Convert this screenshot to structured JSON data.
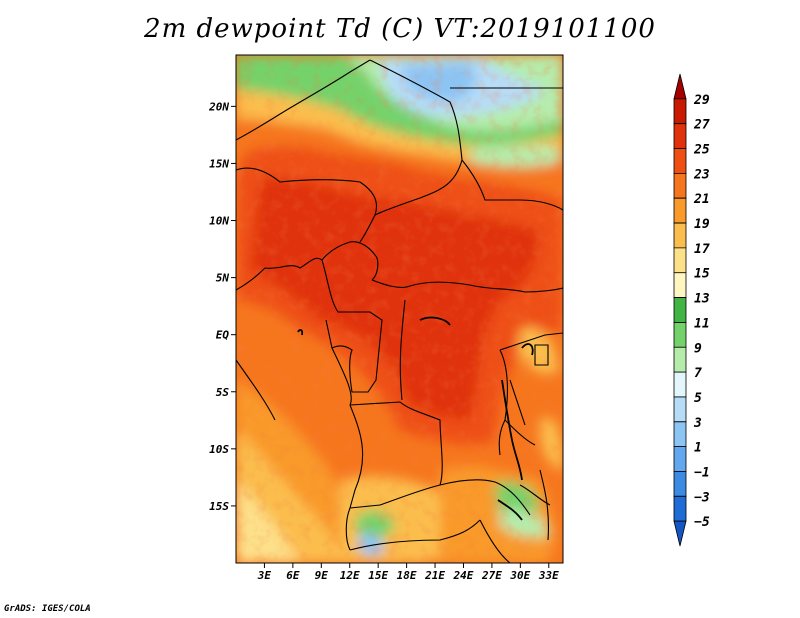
{
  "title": "2m dewpoint Td (C) VT:2019101100",
  "credit": "GrADS: IGES/COLA",
  "map": {
    "lat_range": [
      -20,
      24.5
    ],
    "lon_range": [
      0,
      34.5
    ],
    "lat_ticks": [
      {
        "value": 20,
        "label": "20N"
      },
      {
        "value": 15,
        "label": "15N"
      },
      {
        "value": 10,
        "label": "10N"
      },
      {
        "value": 5,
        "label": "5N"
      },
      {
        "value": 0,
        "label": "EQ"
      },
      {
        "value": -5,
        "label": "5S"
      },
      {
        "value": -10,
        "label": "10S"
      },
      {
        "value": -15,
        "label": "15S"
      }
    ],
    "lon_ticks": [
      {
        "value": 3,
        "label": "3E"
      },
      {
        "value": 6,
        "label": "6E"
      },
      {
        "value": 9,
        "label": "9E"
      },
      {
        "value": 12,
        "label": "12E"
      },
      {
        "value": 15,
        "label": "15E"
      },
      {
        "value": 18,
        "label": "18E"
      },
      {
        "value": 21,
        "label": "21E"
      },
      {
        "value": 24,
        "label": "24E"
      },
      {
        "value": 27,
        "label": "27E"
      },
      {
        "value": 30,
        "label": "30E"
      },
      {
        "value": 33,
        "label": "33E"
      }
    ]
  },
  "colorbar": {
    "levels": [
      "29",
      "27",
      "25",
      "23",
      "21",
      "19",
      "17",
      "15",
      "13",
      "11",
      "9",
      "7",
      "5",
      "3",
      "1",
      "−1",
      "−3",
      "−5"
    ],
    "colors": [
      "#a50000",
      "#c81a00",
      "#e0330c",
      "#ee5014",
      "#f6761e",
      "#f99a2a",
      "#fbbe4e",
      "#fde08a",
      "#fff5c0",
      "#41b444",
      "#74d26a",
      "#b5ecac",
      "#e3f6fb",
      "#b6dcf8",
      "#8cc4f4",
      "#62a8ee",
      "#3c8ae2",
      "#1e6cd6",
      "#1656c4"
    ]
  }
}
